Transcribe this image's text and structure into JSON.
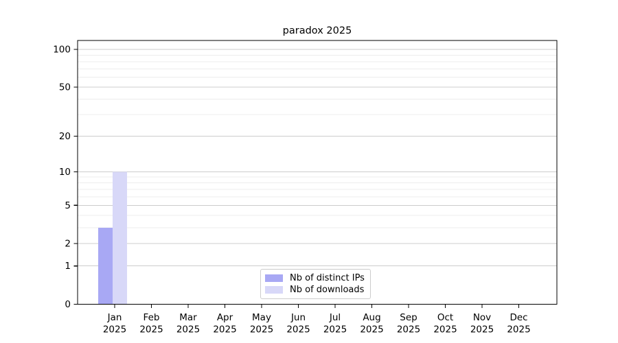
{
  "chart_data": {
    "type": "bar",
    "title": "paradox 2025",
    "categories": [
      "Jan",
      "Feb",
      "Mar",
      "Apr",
      "May",
      "Jun",
      "Jul",
      "Aug",
      "Sep",
      "Oct",
      "Nov",
      "Dec"
    ],
    "year_label": "2025",
    "series": [
      {
        "name": "Nb of distinct IPs",
        "color": "#a8a8f4",
        "values": [
          3,
          0,
          0,
          0,
          0,
          0,
          0,
          0,
          0,
          0,
          0,
          0
        ]
      },
      {
        "name": "Nb of downloads",
        "color": "#d8d8f8",
        "values": [
          10,
          0,
          0,
          0,
          0,
          0,
          0,
          0,
          0,
          0,
          0,
          0
        ]
      }
    ],
    "y_axis": {
      "scale": "log1p",
      "major_ticks": [
        0,
        1,
        2,
        5,
        10,
        20,
        50,
        100
      ],
      "minor_ticks": [
        3,
        4,
        6,
        7,
        8,
        9,
        30,
        40,
        60,
        70,
        80,
        90
      ],
      "range": [
        0,
        118
      ]
    },
    "xlabel": "",
    "ylabel": "",
    "legend_position": "lower center",
    "grid": true
  }
}
